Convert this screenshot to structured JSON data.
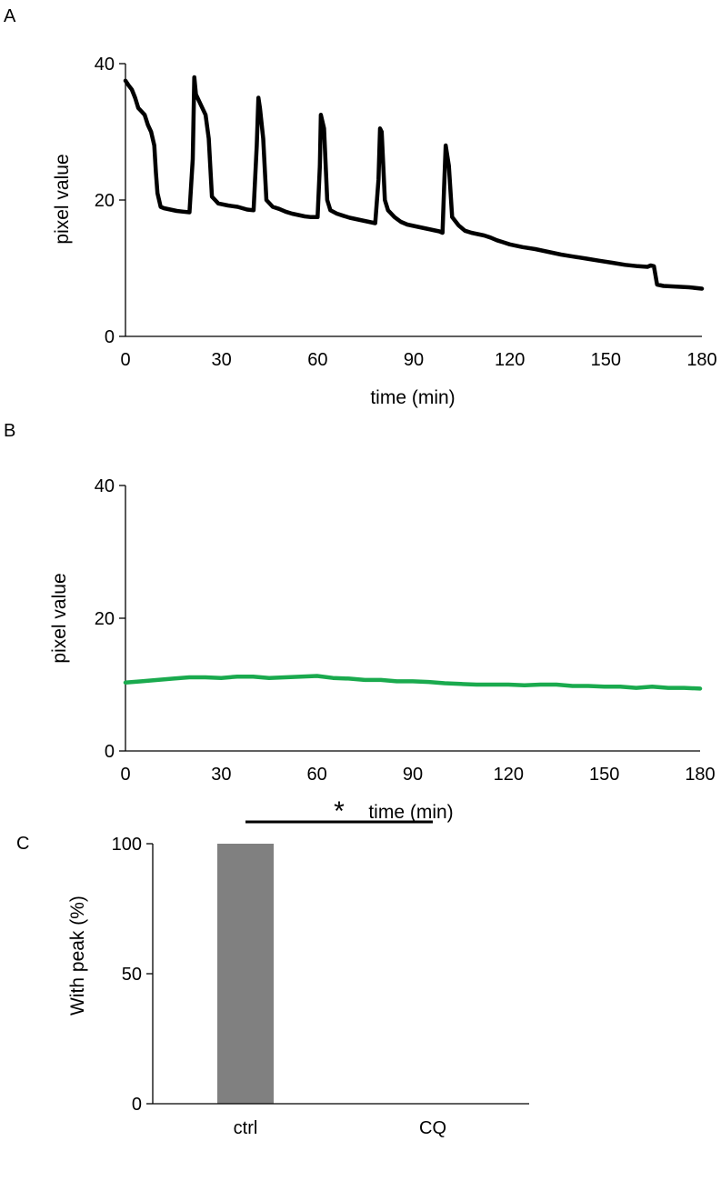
{
  "chart_data": [
    {
      "panel": "A",
      "type": "line",
      "xlabel": "time (min)",
      "ylabel": "pixel value",
      "xlim": [
        0,
        180
      ],
      "ylim": [
        0,
        40
      ],
      "xticks": [
        0,
        30,
        60,
        90,
        120,
        150,
        180
      ],
      "yticks": [
        0,
        20,
        40
      ],
      "grid": false,
      "series": [
        {
          "name": "pixel value",
          "color": "#000000",
          "x": [
            0,
            1,
            2,
            3,
            4,
            5,
            6,
            7,
            8,
            9,
            9.5,
            10,
            11,
            12,
            14,
            16,
            18,
            20,
            21,
            21.5,
            22,
            23,
            25,
            26,
            27,
            28,
            29,
            32,
            35,
            38,
            40,
            41,
            41.5,
            42,
            43,
            44,
            46,
            48,
            50,
            52,
            54,
            56,
            58,
            60,
            60.7,
            61,
            62,
            63,
            64,
            66,
            68,
            70,
            72,
            74,
            76,
            78,
            79,
            79.5,
            80,
            81,
            82,
            84,
            86,
            88,
            90,
            92,
            94,
            96,
            98,
            99,
            99.5,
            100,
            101,
            102,
            104,
            106,
            108,
            110,
            112,
            114,
            116,
            118,
            120,
            124,
            128,
            132,
            136,
            140,
            144,
            148,
            152,
            156,
            160,
            163,
            164,
            165,
            166,
            168,
            172,
            176,
            180
          ],
          "values": [
            37.5,
            36.8,
            36.2,
            35,
            33.5,
            33,
            32.5,
            31,
            30,
            28,
            24,
            21,
            19,
            18.8,
            18.6,
            18.4,
            18.3,
            18.2,
            26,
            38,
            35.5,
            34.5,
            32.5,
            29,
            20.5,
            20,
            19.5,
            19.2,
            19,
            18.6,
            18.5,
            28,
            35,
            33.5,
            29,
            20,
            19,
            18.7,
            18.3,
            18,
            17.8,
            17.6,
            17.5,
            17.5,
            25,
            32.5,
            30.5,
            20,
            18.5,
            18,
            17.7,
            17.4,
            17.2,
            17,
            16.8,
            16.6,
            23,
            30.5,
            30,
            20,
            18.5,
            17.5,
            16.8,
            16.4,
            16.2,
            16,
            15.8,
            15.6,
            15.4,
            15.2,
            22,
            28,
            25,
            17.5,
            16.3,
            15.5,
            15.2,
            15,
            14.8,
            14.5,
            14.1,
            13.8,
            13.5,
            13.1,
            12.8,
            12.4,
            12,
            11.7,
            11.4,
            11.1,
            10.8,
            10.5,
            10.3,
            10.2,
            10.4,
            10.3,
            7.6,
            7.4,
            7.3,
            7.2,
            7
          ]
        }
      ]
    },
    {
      "panel": "B",
      "type": "line",
      "xlabel": "time (min)",
      "ylabel": "pixel value",
      "xlim": [
        0,
        180
      ],
      "ylim": [
        0,
        40
      ],
      "xticks": [
        0,
        30,
        60,
        90,
        120,
        150,
        180
      ],
      "yticks": [
        0,
        20,
        40
      ],
      "grid": false,
      "series": [
        {
          "name": "pixel value",
          "color": "#1aaa4e",
          "x": [
            0,
            5,
            10,
            15,
            20,
            25,
            30,
            35,
            40,
            45,
            50,
            55,
            60,
            65,
            70,
            75,
            80,
            85,
            90,
            95,
            100,
            105,
            110,
            115,
            120,
            125,
            130,
            135,
            140,
            145,
            150,
            155,
            160,
            165,
            170,
            175,
            180
          ],
          "values": [
            10.3,
            10.5,
            10.7,
            10.9,
            11.1,
            11.1,
            11,
            11.2,
            11.2,
            11,
            11.1,
            11.2,
            11.3,
            11,
            10.9,
            10.7,
            10.7,
            10.5,
            10.5,
            10.4,
            10.2,
            10.1,
            10,
            10,
            10,
            9.9,
            10,
            10,
            9.8,
            9.8,
            9.7,
            9.7,
            9.5,
            9.7,
            9.5,
            9.5,
            9.4
          ]
        }
      ]
    },
    {
      "panel": "C",
      "type": "bar",
      "ylabel": "With peak (%)",
      "xlabel": "",
      "ylim": [
        0,
        100
      ],
      "yticks": [
        0,
        50,
        100
      ],
      "categories": [
        "ctrl",
        "CQ"
      ],
      "values": [
        100,
        0
      ],
      "bar_color": "#808080",
      "significance": "*"
    }
  ]
}
